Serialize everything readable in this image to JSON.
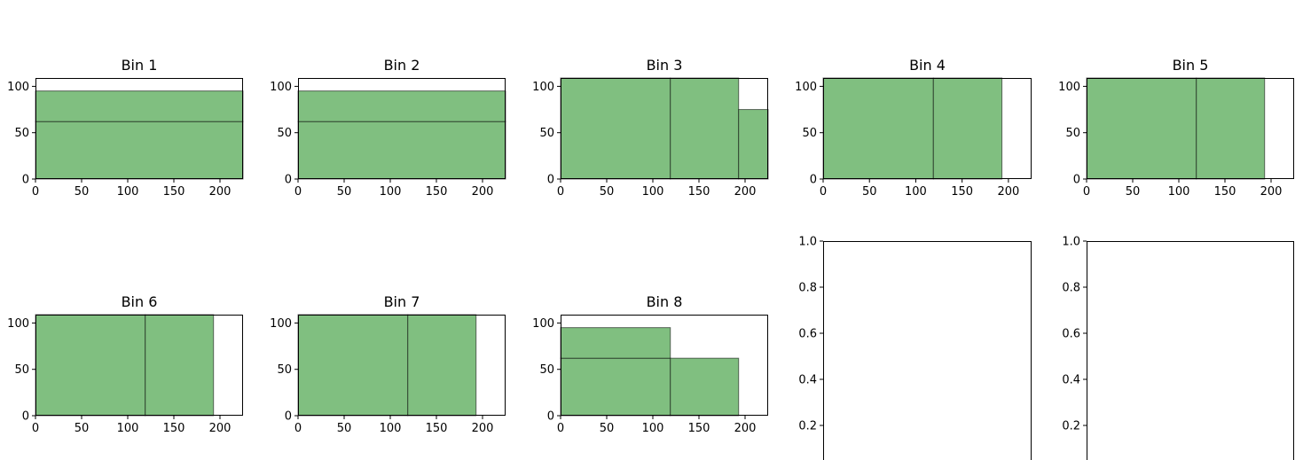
{
  "chart_data": [
    {
      "type": "bin-packing",
      "title": "Bin 1",
      "xlim": [
        0,
        225
      ],
      "ylim": [
        0,
        109
      ],
      "xticks": [
        "0",
        "50",
        "100",
        "150",
        "200"
      ],
      "yticks": [
        "0",
        "50",
        "100"
      ],
      "rects": [
        {
          "x0": 0,
          "x1": 225,
          "y0": 0,
          "y1": 62
        },
        {
          "x0": 0,
          "x1": 225,
          "y0": 62,
          "y1": 95
        }
      ]
    },
    {
      "type": "bin-packing",
      "title": "Bin 2",
      "xlim": [
        0,
        225
      ],
      "ylim": [
        0,
        109
      ],
      "xticks": [
        "0",
        "50",
        "100",
        "150",
        "200"
      ],
      "yticks": [
        "0",
        "50",
        "100"
      ],
      "rects": [
        {
          "x0": 0,
          "x1": 225,
          "y0": 0,
          "y1": 62
        },
        {
          "x0": 0,
          "x1": 225,
          "y0": 62,
          "y1": 95
        }
      ]
    },
    {
      "type": "bin-packing",
      "title": "Bin 3",
      "xlim": [
        0,
        225
      ],
      "ylim": [
        0,
        109
      ],
      "xticks": [
        "0",
        "50",
        "100",
        "150",
        "200"
      ],
      "yticks": [
        "0",
        "50",
        "100"
      ],
      "rects": [
        {
          "x0": 0,
          "x1": 119,
          "y0": 0,
          "y1": 109
        },
        {
          "x0": 119,
          "x1": 193,
          "y0": 0,
          "y1": 109
        },
        {
          "x0": 193,
          "x1": 225,
          "y0": 0,
          "y1": 75
        }
      ]
    },
    {
      "type": "bin-packing",
      "title": "Bin 4",
      "xlim": [
        0,
        225
      ],
      "ylim": [
        0,
        109
      ],
      "xticks": [
        "0",
        "50",
        "100",
        "150",
        "200"
      ],
      "yticks": [
        "0",
        "50",
        "100"
      ],
      "rects": [
        {
          "x0": 0,
          "x1": 119,
          "y0": 0,
          "y1": 109
        },
        {
          "x0": 119,
          "x1": 193,
          "y0": 0,
          "y1": 109
        }
      ]
    },
    {
      "type": "bin-packing",
      "title": "Bin 5",
      "xlim": [
        0,
        225
      ],
      "ylim": [
        0,
        109
      ],
      "xticks": [
        "0",
        "50",
        "100",
        "150",
        "200"
      ],
      "yticks": [
        "0",
        "50",
        "100"
      ],
      "rects": [
        {
          "x0": 0,
          "x1": 119,
          "y0": 0,
          "y1": 109
        },
        {
          "x0": 119,
          "x1": 193,
          "y0": 0,
          "y1": 109
        }
      ]
    },
    {
      "type": "bin-packing",
      "title": "Bin 6",
      "xlim": [
        0,
        225
      ],
      "ylim": [
        0,
        109
      ],
      "xticks": [
        "0",
        "50",
        "100",
        "150",
        "200"
      ],
      "yticks": [
        "0",
        "50",
        "100"
      ],
      "rects": [
        {
          "x0": 0,
          "x1": 119,
          "y0": 0,
          "y1": 109
        },
        {
          "x0": 119,
          "x1": 193,
          "y0": 0,
          "y1": 109
        }
      ]
    },
    {
      "type": "bin-packing",
      "title": "Bin 7",
      "xlim": [
        0,
        225
      ],
      "ylim": [
        0,
        109
      ],
      "xticks": [
        "0",
        "50",
        "100",
        "150",
        "200"
      ],
      "yticks": [
        "0",
        "50",
        "100"
      ],
      "rects": [
        {
          "x0": 0,
          "x1": 119,
          "y0": 0,
          "y1": 109
        },
        {
          "x0": 119,
          "x1": 193,
          "y0": 0,
          "y1": 109
        }
      ]
    },
    {
      "type": "bin-packing",
      "title": "Bin 8",
      "xlim": [
        0,
        225
      ],
      "ylim": [
        0,
        109
      ],
      "xticks": [
        "0",
        "50",
        "100",
        "150",
        "200"
      ],
      "yticks": [
        "0",
        "50",
        "100"
      ],
      "rects": [
        {
          "x0": 0,
          "x1": 119,
          "y0": 0,
          "y1": 62
        },
        {
          "x0": 0,
          "x1": 119,
          "y0": 62,
          "y1": 95
        },
        {
          "x0": 119,
          "x1": 193,
          "y0": 0,
          "y1": 62
        }
      ]
    },
    {
      "type": "empty",
      "title": "",
      "ylim": [
        0,
        1
      ],
      "yticks": [
        "0.2",
        "0.4",
        "0.6",
        "0.8",
        "1.0"
      ],
      "rects": []
    },
    {
      "type": "empty",
      "title": "",
      "ylim": [
        0,
        1
      ],
      "yticks": [
        "0.2",
        "0.4",
        "0.6",
        "0.8",
        "1.0"
      ],
      "rects": []
    }
  ],
  "colors": {
    "fill": "#80bf80",
    "edge": "#000000",
    "axis": "#000000"
  }
}
